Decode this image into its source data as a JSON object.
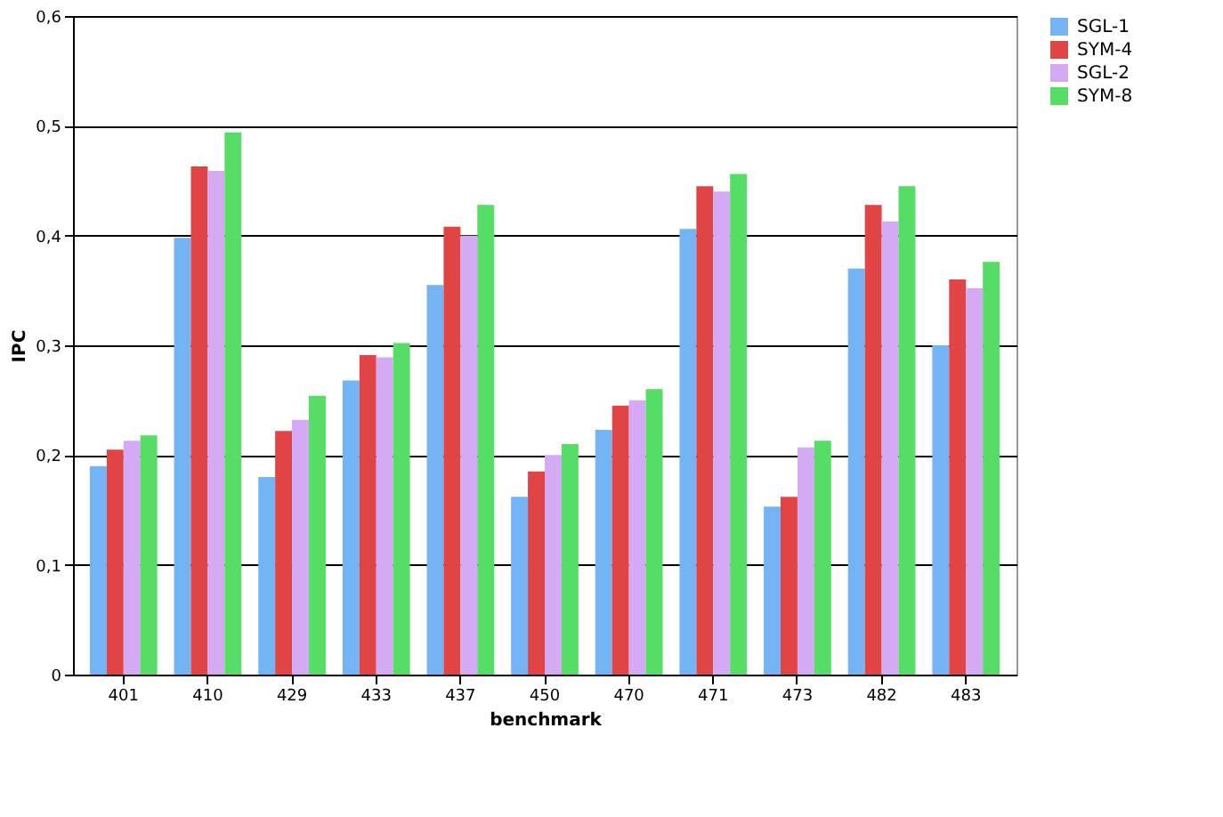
{
  "chart_data": {
    "type": "bar",
    "xlabel": "benchmark",
    "ylabel": "IPC",
    "categories": [
      "401",
      "410",
      "429",
      "433",
      "437",
      "450",
      "470",
      "471",
      "473",
      "482",
      "483"
    ],
    "series": [
      {
        "name": "SGL-1",
        "color": "#74b4f4",
        "values": [
          0.19,
          0.398,
          0.18,
          0.268,
          0.355,
          0.162,
          0.223,
          0.406,
          0.153,
          0.37,
          0.3
        ]
      },
      {
        "name": "SYM-4",
        "color": "#e04444",
        "values": [
          0.205,
          0.463,
          0.222,
          0.291,
          0.408,
          0.185,
          0.245,
          0.445,
          0.162,
          0.428,
          0.36
        ]
      },
      {
        "name": "SGL-2",
        "color": "#d4aaf4",
        "values": [
          0.213,
          0.459,
          0.232,
          0.289,
          0.4,
          0.2,
          0.25,
          0.44,
          0.207,
          0.413,
          0.352
        ]
      },
      {
        "name": "SYM-8",
        "color": "#55dd66",
        "values": [
          0.218,
          0.494,
          0.254,
          0.302,
          0.428,
          0.21,
          0.26,
          0.456,
          0.213,
          0.445,
          0.376
        ]
      }
    ],
    "ylim": [
      0,
      0.6
    ],
    "yticks": [
      {
        "value": 0,
        "label": "0"
      },
      {
        "value": 0.1,
        "label": "0,1"
      },
      {
        "value": 0.2,
        "label": "0,2"
      },
      {
        "value": 0.3,
        "label": "0,3"
      },
      {
        "value": 0.4,
        "label": "0,4"
      },
      {
        "value": 0.5,
        "label": "0,5"
      },
      {
        "value": 0.6,
        "label": "0,6"
      }
    ],
    "grid": "y",
    "legend": "right"
  }
}
